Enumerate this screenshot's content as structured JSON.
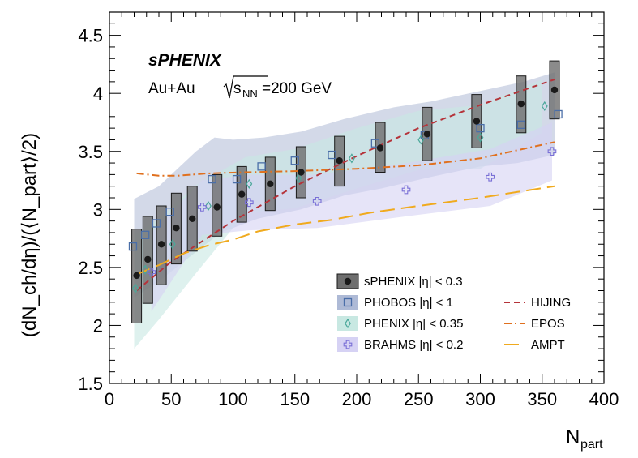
{
  "chart_data": {
    "type": "scatter",
    "xlabel": "N",
    "xlabel_sub": "part",
    "ylabel": "(dN_ch/dη)/(⟨N_part⟩/2)",
    "xlim": [
      0,
      400
    ],
    "ylim": [
      1.5,
      4.7
    ],
    "x_ticks": [
      "0",
      "50",
      "100",
      "150",
      "200",
      "250",
      "300",
      "350",
      "400"
    ],
    "y_ticks": [
      "1.5",
      "2",
      "2.5",
      "3",
      "3.5",
      "4",
      "4.5"
    ],
    "annotation": {
      "experiment": "sPHENIX",
      "system": "Au+Au",
      "energy_prefix": "s",
      "energy_sub": "NN",
      "energy_value": "=200 GeV"
    },
    "series": [
      {
        "name": "sPHENIX |η| < 0.3",
        "marker": "filled-circle",
        "color": "#1a1a1a",
        "points": [
          {
            "x": 22,
            "y": 2.43,
            "lo": 2.02,
            "hi": 2.83
          },
          {
            "x": 31,
            "y": 2.57,
            "lo": 2.19,
            "hi": 2.94
          },
          {
            "x": 42,
            "y": 2.7,
            "lo": 2.35,
            "hi": 3.03
          },
          {
            "x": 54,
            "y": 2.84,
            "lo": 2.53,
            "hi": 3.14
          },
          {
            "x": 67,
            "y": 2.92,
            "lo": 2.64,
            "hi": 3.2
          },
          {
            "x": 87,
            "y": 3.02,
            "lo": 2.77,
            "hi": 3.3
          },
          {
            "x": 107,
            "y": 3.13,
            "lo": 2.89,
            "hi": 3.37
          },
          {
            "x": 130,
            "y": 3.22,
            "lo": 2.99,
            "hi": 3.45
          },
          {
            "x": 155,
            "y": 3.32,
            "lo": 3.1,
            "hi": 3.54
          },
          {
            "x": 186,
            "y": 3.42,
            "lo": 3.2,
            "hi": 3.63
          },
          {
            "x": 219,
            "y": 3.53,
            "lo": 3.32,
            "hi": 3.75
          },
          {
            "x": 257,
            "y": 3.65,
            "lo": 3.42,
            "hi": 3.88
          },
          {
            "x": 297,
            "y": 3.76,
            "lo": 3.53,
            "hi": 3.99
          },
          {
            "x": 333,
            "y": 3.91,
            "lo": 3.66,
            "hi": 4.15
          },
          {
            "x": 360,
            "y": 4.03,
            "lo": 3.78,
            "hi": 4.28
          }
        ]
      },
      {
        "name": "PHOBOS |η| < 1",
        "marker": "open-square",
        "color": "#4a6ea8",
        "band_color": "#aebad6",
        "points": [
          {
            "x": 19,
            "y": 2.68
          },
          {
            "x": 29,
            "y": 2.78
          },
          {
            "x": 38,
            "y": 2.88
          },
          {
            "x": 49,
            "y": 2.98
          },
          {
            "x": 83,
            "y": 3.26
          },
          {
            "x": 103,
            "y": 3.26
          },
          {
            "x": 123,
            "y": 3.37
          },
          {
            "x": 150,
            "y": 3.42
          },
          {
            "x": 180,
            "y": 3.47
          },
          {
            "x": 215,
            "y": 3.57
          },
          {
            "x": 255,
            "y": 3.64
          },
          {
            "x": 300,
            "y": 3.7
          },
          {
            "x": 333,
            "y": 3.73
          },
          {
            "x": 363,
            "y": 3.82
          }
        ],
        "band_upper": [
          {
            "x": 20,
            "y": 3.09
          },
          {
            "x": 40,
            "y": 3.2
          },
          {
            "x": 70,
            "y": 3.5
          },
          {
            "x": 85,
            "y": 3.62
          },
          {
            "x": 100,
            "y": 3.6
          },
          {
            "x": 125,
            "y": 3.62
          },
          {
            "x": 155,
            "y": 3.67
          },
          {
            "x": 190,
            "y": 3.78
          },
          {
            "x": 230,
            "y": 3.88
          },
          {
            "x": 260,
            "y": 3.93
          },
          {
            "x": 300,
            "y": 4.02
          },
          {
            "x": 335,
            "y": 4.1
          },
          {
            "x": 360,
            "y": 4.18
          }
        ],
        "band_lower": [
          {
            "x": 360,
            "y": 3.47
          },
          {
            "x": 330,
            "y": 3.4
          },
          {
            "x": 300,
            "y": 3.37
          },
          {
            "x": 260,
            "y": 3.28
          },
          {
            "x": 220,
            "y": 3.18
          },
          {
            "x": 190,
            "y": 3.12
          },
          {
            "x": 155,
            "y": 3.0
          },
          {
            "x": 120,
            "y": 2.92
          },
          {
            "x": 90,
            "y": 2.8
          },
          {
            "x": 60,
            "y": 2.55
          },
          {
            "x": 40,
            "y": 2.38
          },
          {
            "x": 20,
            "y": 2.24
          }
        ]
      },
      {
        "name": "PHENIX |η| < 0.35",
        "marker": "open-diamond",
        "color": "#4aa89a",
        "band_color": "#c8e8e2",
        "points": [
          {
            "x": 21,
            "y": 2.32
          },
          {
            "x": 29,
            "y": 2.48
          },
          {
            "x": 51,
            "y": 2.7
          },
          {
            "x": 80,
            "y": 3.03
          },
          {
            "x": 113,
            "y": 3.22
          },
          {
            "x": 153,
            "y": 3.27
          },
          {
            "x": 196,
            "y": 3.44
          },
          {
            "x": 252,
            "y": 3.6
          },
          {
            "x": 300,
            "y": 3.62
          },
          {
            "x": 352,
            "y": 3.89
          }
        ],
        "band_upper": [
          {
            "x": 20,
            "y": 2.78
          },
          {
            "x": 40,
            "y": 2.92
          },
          {
            "x": 70,
            "y": 3.21
          },
          {
            "x": 110,
            "y": 3.45
          },
          {
            "x": 150,
            "y": 3.52
          },
          {
            "x": 200,
            "y": 3.7
          },
          {
            "x": 250,
            "y": 3.85
          },
          {
            "x": 300,
            "y": 3.9
          },
          {
            "x": 350,
            "y": 4.12
          }
        ],
        "band_lower": [
          {
            "x": 350,
            "y": 3.66
          },
          {
            "x": 300,
            "y": 3.35
          },
          {
            "x": 250,
            "y": 3.34
          },
          {
            "x": 200,
            "y": 3.18
          },
          {
            "x": 150,
            "y": 3.01
          },
          {
            "x": 110,
            "y": 2.97
          },
          {
            "x": 70,
            "y": 2.45
          },
          {
            "x": 40,
            "y": 2.05
          },
          {
            "x": 20,
            "y": 1.8
          }
        ]
      },
      {
        "name": "BRAHMS |η| < 0.2",
        "marker": "open-cross",
        "color": "#7a70d6",
        "band_color": "#d6d2f4",
        "points": [
          {
            "x": 34,
            "y": 2.46
          },
          {
            "x": 75,
            "y": 3.02
          },
          {
            "x": 113,
            "y": 3.06
          },
          {
            "x": 168,
            "y": 3.07
          },
          {
            "x": 240,
            "y": 3.17
          },
          {
            "x": 308,
            "y": 3.28
          },
          {
            "x": 358,
            "y": 3.5
          }
        ],
        "band_upper": [
          {
            "x": 34,
            "y": 2.8
          },
          {
            "x": 75,
            "y": 3.25
          },
          {
            "x": 113,
            "y": 3.3
          },
          {
            "x": 168,
            "y": 3.3
          },
          {
            "x": 240,
            "y": 3.4
          },
          {
            "x": 308,
            "y": 3.52
          },
          {
            "x": 358,
            "y": 3.75
          }
        ],
        "band_lower": [
          {
            "x": 358,
            "y": 3.25
          },
          {
            "x": 308,
            "y": 3.03
          },
          {
            "x": 240,
            "y": 2.94
          },
          {
            "x": 168,
            "y": 2.84
          },
          {
            "x": 113,
            "y": 2.82
          },
          {
            "x": 75,
            "y": 2.78
          },
          {
            "x": 34,
            "y": 2.12
          }
        ]
      },
      {
        "name": "HIJING",
        "line": "dashed",
        "color": "#b5333a",
        "points": [
          {
            "x": 22,
            "y": 2.3
          },
          {
            "x": 50,
            "y": 2.55
          },
          {
            "x": 100,
            "y": 2.9
          },
          {
            "x": 150,
            "y": 3.2
          },
          {
            "x": 200,
            "y": 3.46
          },
          {
            "x": 250,
            "y": 3.7
          },
          {
            "x": 300,
            "y": 3.9
          },
          {
            "x": 360,
            "y": 4.12
          }
        ]
      },
      {
        "name": "EPOS",
        "line": "dash-dot",
        "color": "#e0701e",
        "points": [
          {
            "x": 22,
            "y": 3.31
          },
          {
            "x": 40,
            "y": 3.29
          },
          {
            "x": 55,
            "y": 3.29
          },
          {
            "x": 80,
            "y": 3.31
          },
          {
            "x": 110,
            "y": 3.32
          },
          {
            "x": 150,
            "y": 3.33
          },
          {
            "x": 200,
            "y": 3.35
          },
          {
            "x": 250,
            "y": 3.38
          },
          {
            "x": 300,
            "y": 3.44
          },
          {
            "x": 360,
            "y": 3.58
          }
        ]
      },
      {
        "name": "AMPT",
        "line": "long-dash",
        "color": "#f0aa1e",
        "points": [
          {
            "x": 22,
            "y": 2.44
          },
          {
            "x": 40,
            "y": 2.52
          },
          {
            "x": 60,
            "y": 2.62
          },
          {
            "x": 80,
            "y": 2.69
          },
          {
            "x": 100,
            "y": 2.74
          },
          {
            "x": 120,
            "y": 2.81
          },
          {
            "x": 150,
            "y": 2.87
          },
          {
            "x": 180,
            "y": 2.91
          },
          {
            "x": 210,
            "y": 2.97
          },
          {
            "x": 250,
            "y": 3.03
          },
          {
            "x": 300,
            "y": 3.1
          },
          {
            "x": 330,
            "y": 3.15
          },
          {
            "x": 360,
            "y": 3.2
          }
        ]
      }
    ],
    "legend": {
      "placement": "bottom-right",
      "items": [
        {
          "label": "sPHENIX |η| < 0.3",
          "kind": "box-circle",
          "color": "#6e6e6e"
        },
        {
          "label": "HIJING",
          "kind": "line-dashed",
          "color": "#b5333a"
        },
        {
          "label": "PHOBOS |η| < 1",
          "kind": "band-square",
          "color": "#aebad6"
        },
        {
          "label": "EPOS",
          "kind": "line-dashdot",
          "color": "#e0701e"
        },
        {
          "label": "PHENIX |η| < 0.35",
          "kind": "band-diamond",
          "color": "#c8e8e2"
        },
        {
          "label": "AMPT",
          "kind": "line-longdash",
          "color": "#f0aa1e"
        },
        {
          "label": "BRAHMS |η| < 0.2",
          "kind": "band-cross",
          "color": "#d6d2f4"
        }
      ]
    }
  }
}
